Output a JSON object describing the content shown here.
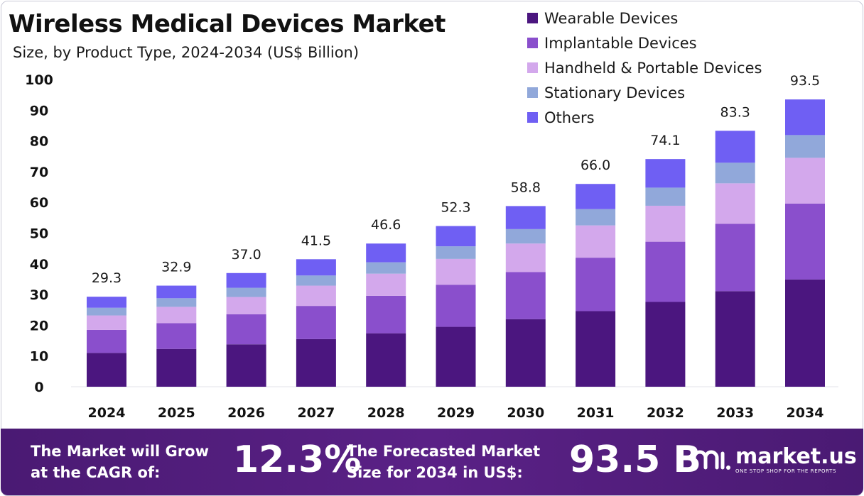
{
  "chart_data": {
    "type": "bar",
    "stacked": true,
    "title": "Wireless Medical Devices Market",
    "subtitle": "Size, by Product Type, 2024-2034 (US$ Billion)",
    "categories": [
      "2024",
      "2025",
      "2026",
      "2027",
      "2028",
      "2029",
      "2030",
      "2031",
      "2032",
      "2033",
      "2034"
    ],
    "series": [
      {
        "name": "Wearable Devices",
        "color": "#4b167f",
        "values": [
          11.0,
          12.3,
          13.8,
          15.5,
          17.4,
          19.5,
          22.0,
          24.6,
          27.6,
          31.1,
          34.9
        ]
      },
      {
        "name": "Implantable Devices",
        "color": "#8a4fcc",
        "values": [
          7.5,
          8.4,
          9.8,
          10.8,
          12.2,
          13.7,
          15.3,
          17.4,
          19.6,
          21.9,
          24.7
        ]
      },
      {
        "name": "Handheld & Portable Devices",
        "color": "#d3a8ec",
        "values": [
          4.7,
          5.3,
          5.6,
          6.6,
          7.2,
          8.4,
          9.3,
          10.5,
          11.7,
          13.2,
          14.9
        ]
      },
      {
        "name": "Stationary Devices",
        "color": "#91a8da",
        "values": [
          2.5,
          2.8,
          3.0,
          3.3,
          3.7,
          4.1,
          4.7,
          5.3,
          5.9,
          6.7,
          7.4
        ]
      },
      {
        "name": "Others",
        "color": "#6f5ff3",
        "values": [
          3.6,
          4.1,
          4.8,
          5.3,
          6.1,
          6.6,
          7.5,
          8.2,
          9.3,
          10.4,
          11.6
        ]
      }
    ],
    "totals": [
      "29.3",
      "32.9",
      "37.0",
      "41.5",
      "46.6",
      "52.3",
      "58.8",
      "66.0",
      "74.1",
      "83.3",
      "93.5"
    ],
    "yticks": [
      "0",
      "10",
      "20",
      "30",
      "40",
      "50",
      "60",
      "70",
      "80",
      "90",
      "100"
    ],
    "ylim": [
      0,
      100
    ],
    "xlabel": "",
    "ylabel": "",
    "grid": false,
    "legend_position": "top-right"
  },
  "footer": {
    "cagr_label": "The Market will Grow at the CAGR of:",
    "cagr_value": "12.3%",
    "forecast_label": "The Forecasted Market Size for 2034 in US$:",
    "forecast_value": "93.5 B",
    "brand_name": "market.us",
    "brand_tagline": "ONE STOP SHOP FOR THE REPORTS"
  }
}
